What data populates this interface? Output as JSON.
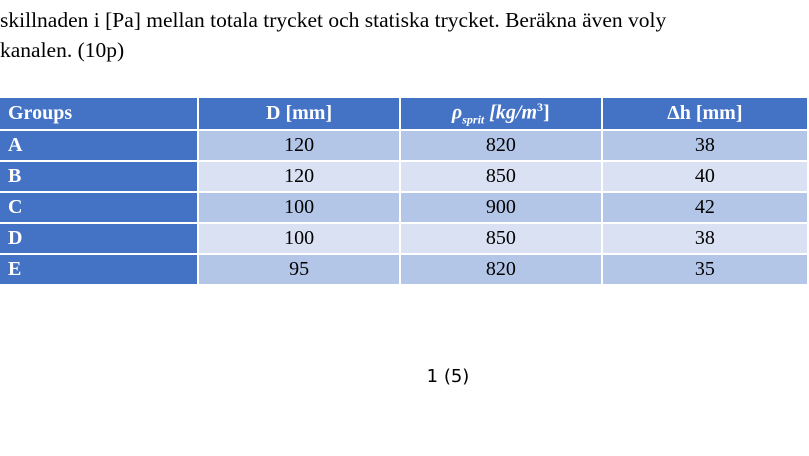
{
  "text": {
    "lines": [
      "skillnaden i [Pa] mellan totala trycket och statiska trycket. Beräkna även voly",
      "kanalen. (10p)"
    ]
  },
  "table": {
    "header": [
      "Groups",
      "D [mm]",
      {
        "symbol": "ρ",
        "subscript": "sprit",
        "unit": "[kg/m",
        "superscript": "3",
        "close": "]"
      },
      "Δh [mm]"
    ],
    "rows": [
      [
        "A",
        120,
        820,
        38
      ],
      [
        "B",
        120,
        850,
        40
      ],
      [
        "C",
        100,
        900,
        42
      ],
      [
        "D",
        100,
        850,
        38
      ],
      [
        "E",
        95,
        820,
        35
      ]
    ]
  },
  "footer": {
    "page": "1 (5)"
  }
}
